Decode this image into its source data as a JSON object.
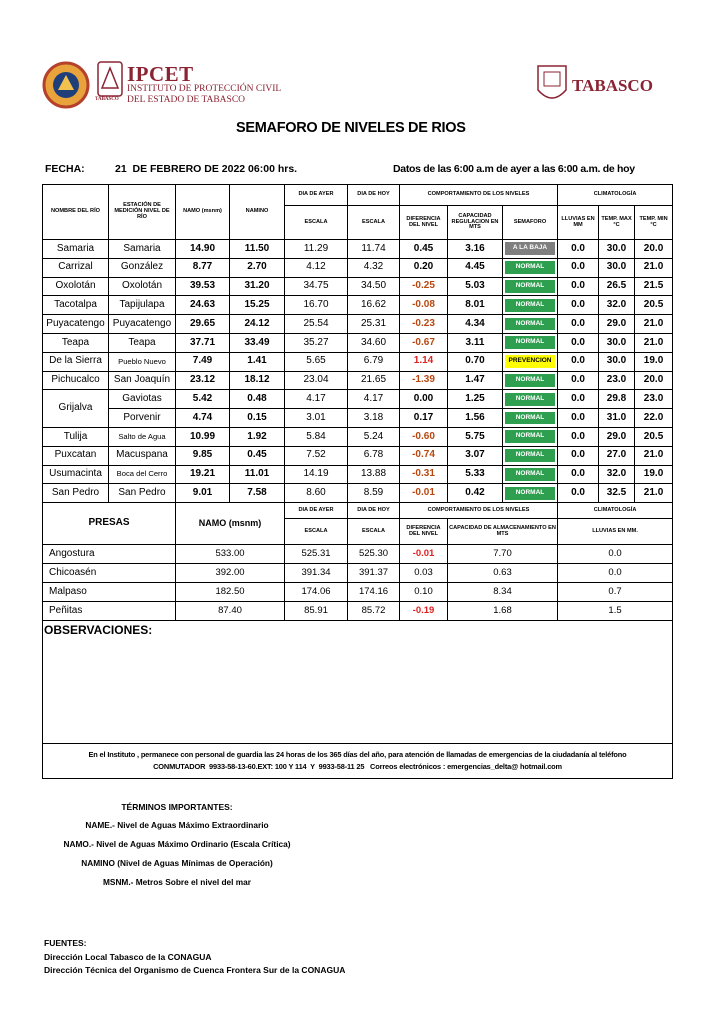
{
  "header": {
    "logo_text": "IPCET",
    "institute": [
      "INSTITUTO DE PROTECCIÓN CIVIL",
      "DEL ESTADO DE TABASCO"
    ],
    "seal_caption": "TABASCO",
    "state": "TABASCO"
  },
  "title": "SEMAFORO DE NIVELES DE RIOS",
  "fecha_label": "FECHA:",
  "fecha": "21  DE FEBRERO DE 2022 06:00 hrs.",
  "datos": "Datos de las 6:00 a.m de ayer a las 6:00 a.m. de hoy",
  "rivers_table": {
    "headers": {
      "nombre": "NOMBRE DEL RÍO",
      "estacion": "ESTACIÓN DE MEDICIÓN NIVEL DE RÍO",
      "namo": "NAMO (msnm)",
      "namino": "NAMINO",
      "ayer": "DIA DE AYER",
      "ayer_sub": "ESCALA",
      "hoy": "DIA DE HOY",
      "hoy_sub": "ESCALA",
      "comportamiento": "COMPORTAMIENTO DE LOS NIVELES",
      "diferencia": "DIFERENCIA DEL NIVEL",
      "capacidad": "CAPACIDAD REGULACION EN MTS",
      "semaforo": "SEMAFORO",
      "climatologia": "CLIMATOLOGÍA",
      "lluvias": "LLUVIAS EN MM",
      "tmax": "TEMP. MAX °C",
      "tmin": "TEMP.  MIN °C"
    },
    "rows": [
      {
        "rio": "Samaria",
        "stations": [
          {
            "estacion": "Samaria",
            "namo": "14.90",
            "namino": "11.50",
            "ayer": "11.29",
            "hoy": "11.74",
            "diferencia": "0.45",
            "capacidad": "3.16",
            "semaforo": "A LA BAJA",
            "semaforo_color": "#7f7f7f",
            "semaforo_text_color": "#ffffff",
            "lluvia": "0.0",
            "tmax": "30.0",
            "tmin": "20.0"
          }
        ]
      },
      {
        "rio": "Carrizal",
        "stations": [
          {
            "estacion": "González",
            "namo": "8.77",
            "namino": "2.70",
            "ayer": "4.12",
            "hoy": "4.32",
            "diferencia": "0.20",
            "capacidad": "4.45",
            "semaforo": "NORMAL",
            "semaforo_color": "#2e9e4f",
            "semaforo_text_color": "#ffffff",
            "lluvia": "0.0",
            "tmax": "30.0",
            "tmin": "21.0"
          }
        ]
      },
      {
        "rio": "Oxolotán",
        "stations": [
          {
            "estacion": "Oxolotán",
            "namo": "39.53",
            "namino": "31.20",
            "ayer": "34.75",
            "hoy": "34.50",
            "diferencia": "-0.25",
            "diferencia_color": "#b8470f",
            "capacidad": "5.03",
            "semaforo": "NORMAL",
            "semaforo_color": "#2e9e4f",
            "semaforo_text_color": "#ffffff",
            "lluvia": "0.0",
            "tmax": "26.5",
            "tmin": "21.5"
          }
        ]
      },
      {
        "rio": "Tacotalpa",
        "stations": [
          {
            "estacion": "Tapijulapa",
            "namo": "24.63",
            "namino": "15.25",
            "ayer": "16.70",
            "hoy": "16.62",
            "diferencia": "-0.08",
            "diferencia_color": "#b8470f",
            "capacidad": "8.01",
            "semaforo": "NORMAL",
            "semaforo_color": "#2e9e4f",
            "semaforo_text_color": "#ffffff",
            "lluvia": "0.0",
            "tmax": "32.0",
            "tmin": "20.5"
          }
        ]
      },
      {
        "rio": "Puyacatengo",
        "stations": [
          {
            "estacion": "Puyacatengo",
            "namo": "29.65",
            "namino": "24.12",
            "ayer": "25.54",
            "hoy": "25.31",
            "diferencia": "-0.23",
            "diferencia_color": "#b8470f",
            "capacidad": "4.34",
            "semaforo": "NORMAL",
            "semaforo_color": "#2e9e4f",
            "semaforo_text_color": "#ffffff",
            "lluvia": "0.0",
            "tmax": "29.0",
            "tmin": "21.0"
          }
        ]
      },
      {
        "rio": "Teapa",
        "stations": [
          {
            "estacion": "Teapa",
            "namo": "37.71",
            "namino": "33.49",
            "ayer": "35.27",
            "hoy": "34.60",
            "diferencia": "-0.67",
            "diferencia_color": "#b8470f",
            "capacidad": "3.11",
            "semaforo": "NORMAL",
            "semaforo_color": "#2e9e4f",
            "semaforo_text_color": "#ffffff",
            "lluvia": "0.0",
            "tmax": "30.0",
            "tmin": "21.0"
          }
        ]
      },
      {
        "rio": "De la Sierra",
        "stations": [
          {
            "estacion": "Pueblo Nuevo",
            "namo": "7.49",
            "namino": "1.41",
            "ayer": "5.65",
            "hoy": "6.79",
            "diferencia": "1.14",
            "diferencia_color": "#e02020",
            "capacidad": "0.70",
            "semaforo": "PREVENCION",
            "semaforo_color": "#ffff00",
            "semaforo_text_color": "#000000",
            "lluvia": "0.0",
            "tmax": "30.0",
            "tmin": "19.0"
          }
        ]
      },
      {
        "rio": "Pichucalco",
        "stations": [
          {
            "estacion": "San Joaquín",
            "namo": "23.12",
            "namino": "18.12",
            "ayer": "23.04",
            "hoy": "21.65",
            "diferencia": "-1.39",
            "diferencia_color": "#b8470f",
            "capacidad": "1.47",
            "semaforo": "NORMAL",
            "semaforo_color": "#2e9e4f",
            "semaforo_text_color": "#ffffff",
            "lluvia": "0.0",
            "tmax": "23.0",
            "tmin": "20.0"
          }
        ]
      },
      {
        "rio": "Grijalva",
        "stations": [
          {
            "estacion": "Gaviotas",
            "namo": "5.42",
            "namino": "0.48",
            "ayer": "4.17",
            "hoy": "4.17",
            "diferencia": "0.00",
            "capacidad": "1.25",
            "semaforo": "NORMAL",
            "semaforo_color": "#2e9e4f",
            "semaforo_text_color": "#ffffff",
            "lluvia": "0.0",
            "tmax": "29.8",
            "tmin": "23.0"
          },
          {
            "estacion": "Porvenir",
            "namo": "4.74",
            "namino": "0.15",
            "ayer": "3.01",
            "hoy": "3.18",
            "diferencia": "0.17",
            "capacidad": "1.56",
            "semaforo": "NORMAL",
            "semaforo_color": "#2e9e4f",
            "semaforo_text_color": "#ffffff",
            "lluvia": "0.0",
            "tmax": "31.0",
            "tmin": "22.0"
          }
        ]
      },
      {
        "rio": "Tulija",
        "stations": [
          {
            "estacion": "Salto de Agua",
            "namo": "10.99",
            "namino": "1.92",
            "ayer": "5.84",
            "hoy": "5.24",
            "diferencia": "-0.60",
            "diferencia_color": "#b8470f",
            "capacidad": "5.75",
            "semaforo": "NORMAL",
            "semaforo_color": "#2e9e4f",
            "semaforo_text_color": "#ffffff",
            "lluvia": "0.0",
            "tmax": "29.0",
            "tmin": "20.5"
          }
        ]
      },
      {
        "rio": "Puxcatan",
        "stations": [
          {
            "estacion": "Macuspana",
            "namo": "9.85",
            "namino": "0.45",
            "ayer": "7.52",
            "hoy": "6.78",
            "diferencia": "-0.74",
            "diferencia_color": "#b8470f",
            "capacidad": "3.07",
            "semaforo": "NORMAL",
            "semaforo_color": "#2e9e4f",
            "semaforo_text_color": "#ffffff",
            "lluvia": "0.0",
            "tmax": "27.0",
            "tmin": "21.0"
          }
        ]
      },
      {
        "rio": "Usumacinta",
        "stations": [
          {
            "estacion": "Boca del Cerro",
            "namo": "19.21",
            "namino": "11.01",
            "ayer": "14.19",
            "hoy": "13.88",
            "diferencia": "-0.31",
            "diferencia_color": "#b8470f",
            "capacidad": "5.33",
            "semaforo": "NORMAL",
            "semaforo_color": "#2e9e4f",
            "semaforo_text_color": "#ffffff",
            "lluvia": "0.0",
            "tmax": "32.0",
            "tmin": "19.0"
          }
        ]
      },
      {
        "rio": "San Pedro",
        "stations": [
          {
            "estacion": "San Pedro",
            "namo": "9.01",
            "namino": "7.58",
            "ayer": "8.60",
            "hoy": "8.59",
            "diferencia": "-0.01",
            "diferencia_color": "#b8470f",
            "capacidad": "0.42",
            "semaforo": "NORMAL",
            "semaforo_color": "#2e9e4f",
            "semaforo_text_color": "#ffffff",
            "lluvia": "0.0",
            "tmax": "32.5",
            "tmin": "21.0"
          }
        ]
      }
    ]
  },
  "presas_table": {
    "headers": {
      "presas": "PRESAS",
      "namo": "NAMO (msnm)",
      "ayer": "DIA DE AYER",
      "ayer_sub": "ESCALA",
      "hoy": "DIA DE HOY",
      "hoy_sub": "ESCALA",
      "comportamiento": "COMPORTAMIENTO DE LOS NIVELES",
      "diferencia": "DIFERENCIA DEL NIVEL",
      "capacidad": "CAPACIDAD DE ALMACENAMIENTO EN MTS",
      "climatologia": "CLIMATOLOGÍA",
      "lluvias": "LLUVIAS EN MM."
    },
    "rows": [
      {
        "presa": "Angostura",
        "namo": "533.00",
        "ayer": "525.31",
        "hoy": "525.30",
        "diferencia": "-0.01",
        "diferencia_color": "#e02020",
        "capacidad": "7.70",
        "lluvia": "0.0"
      },
      {
        "presa": "Chicoasén",
        "namo": "392.00",
        "ayer": "391.34",
        "hoy": "391.37",
        "diferencia": "0.03",
        "capacidad": "0.63",
        "lluvia": "0.0"
      },
      {
        "presa": "Malpaso",
        "namo": "182.50",
        "ayer": "174.06",
        "hoy": "174.16",
        "diferencia": "0.10",
        "capacidad": "8.34",
        "lluvia": "0.7"
      },
      {
        "presa": "Peñitas",
        "namo": "87.40",
        "ayer": "85.91",
        "hoy": "85.72",
        "diferencia": "-0.19",
        "diferencia_color": "#e02020",
        "capacidad": "1.68",
        "lluvia": "1.5"
      }
    ]
  },
  "observaciones_label": "OBSERVACIONES:",
  "contact": [
    "En el Instituto , permanece con personal de guardia las 24 horas de los 365 días del año, para atención de llamadas de emergencias de la ciudadanía al teléfono",
    "CONMUTADOR  9933-58-13-60.EXT: 100 Y 114  Y  9933-58-11 25   Correos electrónicos : emergencias_delta@ hotmail.com"
  ],
  "terms": {
    "title": "TÉRMINOS IMPORTANTES:",
    "items": [
      "NAME.- Nivel de Aguas Máximo Extraordinario",
      "NAMO.- Nivel de Aguas Máximo Ordinario (Escala Crítica)",
      "NAMINO (Nivel de Aguas Mínimas de Operación)",
      "MSNM.- Metros Sobre el nivel del mar"
    ]
  },
  "sources": {
    "title": "FUENTES:",
    "items": [
      "Dirección Local Tabasco de la CONAGUA",
      "Dirección Técnica del Organismo de Cuenca Frontera Sur de la CONAGUA"
    ]
  }
}
